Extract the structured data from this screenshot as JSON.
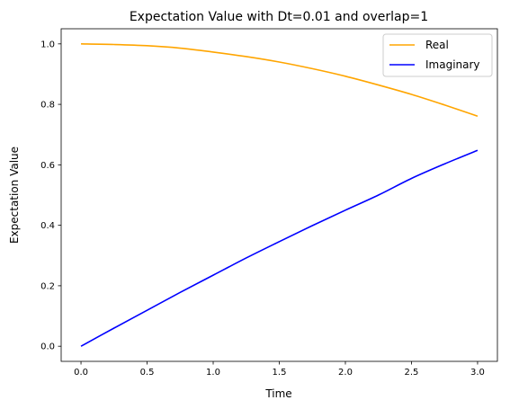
{
  "chart_data": {
    "type": "line",
    "title": "Expectation Value with Dt=0.01 and overlap=1",
    "xlabel": "Time",
    "ylabel": "Expectation Value",
    "xlim": [
      -0.15,
      3.15
    ],
    "ylim": [
      -0.05,
      1.05
    ],
    "xticks": [
      0.0,
      0.5,
      1.0,
      1.5,
      2.0,
      2.5,
      3.0
    ],
    "yticks": [
      0.0,
      0.2,
      0.4,
      0.6,
      0.8,
      1.0
    ],
    "xtick_labels": [
      "0.0",
      "0.5",
      "1.0",
      "1.5",
      "2.0",
      "2.5",
      "3.0"
    ],
    "ytick_labels": [
      "0.0",
      "0.2",
      "0.4",
      "0.6",
      "0.8",
      "1.0"
    ],
    "grid": false,
    "legend_position": "top-right",
    "series": [
      {
        "name": "Real",
        "color": "#ffa500",
        "x": [
          0.0,
          0.25,
          0.5,
          0.75,
          1.0,
          1.25,
          1.5,
          1.75,
          2.0,
          2.25,
          2.5,
          2.75,
          3.0
        ],
        "y": [
          1.0,
          0.998,
          0.994,
          0.986,
          0.973,
          0.958,
          0.94,
          0.918,
          0.893,
          0.864,
          0.833,
          0.798,
          0.761
        ]
      },
      {
        "name": "Imaginary",
        "color": "#0000ff",
        "x": [
          0.0,
          0.25,
          0.5,
          0.75,
          1.0,
          1.25,
          1.5,
          1.75,
          2.0,
          2.25,
          2.5,
          2.75,
          3.0
        ],
        "y": [
          0.0,
          0.06,
          0.119,
          0.178,
          0.235,
          0.292,
          0.346,
          0.399,
          0.45,
          0.5,
          0.555,
          0.603,
          0.648
        ]
      }
    ]
  }
}
